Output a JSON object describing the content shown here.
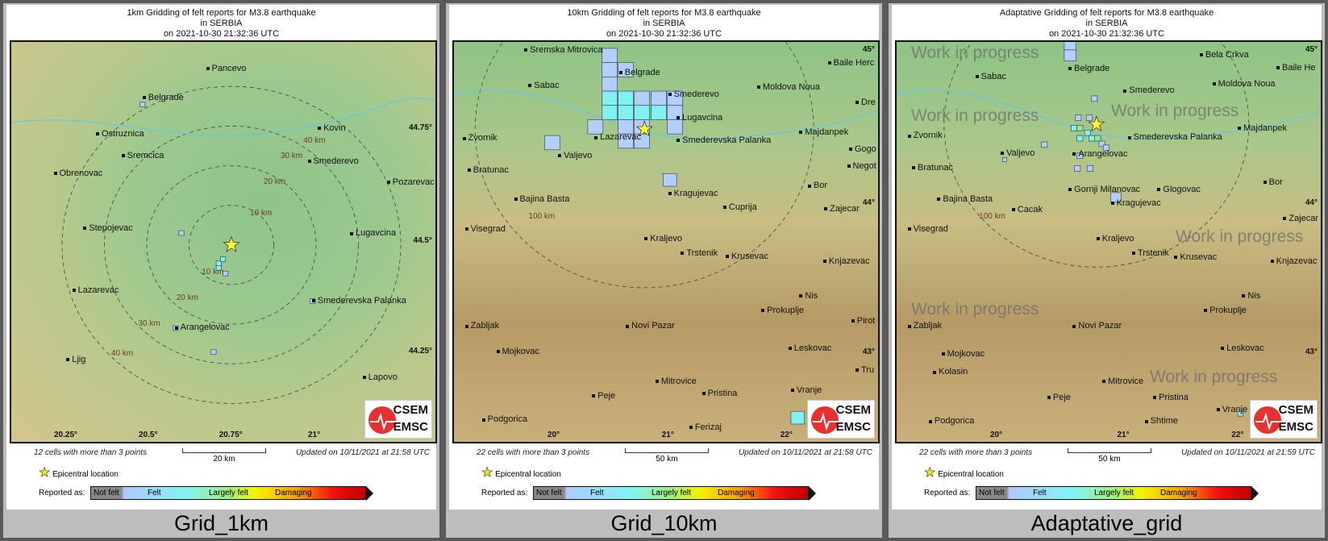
{
  "panels": [
    {
      "title": [
        "1km Gridding of felt reports for M3.8 earthquake",
        "in SERBIA",
        "on  2021-10-30 21:32:36 UTC"
      ],
      "cities": [
        "Pancevo",
        "Belgrade",
        "Ostruznica",
        "Kovin",
        "Sremcica",
        "Smederevo",
        "Obrenovac",
        "Pozarevac",
        "Stepojevac",
        "Lugavcina",
        "Lazarevac",
        "Smederevska Palanka",
        "Arangelovac",
        "Ljig",
        "Lapovo"
      ],
      "lon_ticks": [
        "20.25°",
        "20.5°",
        "20.75°",
        "21°"
      ],
      "lat_ticks": [
        "44.75°",
        "44.5°",
        "44.25°"
      ],
      "rings": [
        "10 km",
        "10 km",
        "20 km",
        "20 km",
        "30 km",
        "30 km",
        "40 km",
        "40 km"
      ],
      "cells_note": "12 cells with more than 3 points",
      "scale": "20 km",
      "updated": "Updated on 10/11/2021 at 21:58 UTC",
      "label": "Grid_1km"
    },
    {
      "title": [
        "10km Gridding of felt reports for M3.8 earthquake",
        "in SERBIA",
        "on  2021-10-30 21:32:36 UTC"
      ],
      "cities": [
        "Sremska Mitrovica",
        "Belgrade",
        "Sabac",
        "Smederevo",
        "Moldova Noua",
        "Lugavcina",
        "Majdanpek",
        "Zvornik",
        "Lazarevac",
        "Smederevska Palanka",
        "Valjevo",
        "Bratunac",
        "Kragujevac",
        "Cuprija",
        "Bor",
        "Zajecar",
        "Bajina Basta",
        "Visegrad",
        "Kraljevo",
        "Trstenik",
        "Krusevac",
        "Knjazevac",
        "Nis",
        "Prokuplje",
        "Zabljak",
        "Novi Pazar",
        "Mojkovac",
        "Leskovac",
        "Mitrovice",
        "Peje",
        "Pristina",
        "Podgorica",
        "Ferizaj",
        "Vranje",
        "Baile Herc",
        "Dre",
        "Gogo",
        "Negot",
        "Pirot",
        "Tru"
      ],
      "lon_ticks": [
        "20°",
        "21°",
        "22°"
      ],
      "lat_ticks": [
        "45°",
        "44°",
        "43°"
      ],
      "rings": [
        "100 km"
      ],
      "cells_note": "22 cells with more than 3 points",
      "scale": "50 km",
      "updated": "Updated on 10/11/2021 at 21:58 UTC",
      "label": "Grid_10km"
    },
    {
      "title": [
        "Adaptative Gridding of felt reports for M3.8 earthquake",
        "in SERBIA",
        "on  2021-10-30 21:32:36 UTC"
      ],
      "cities": [
        "Sabac",
        "Belgrade",
        "Bela Crkva",
        "Baile He",
        "Smederevo",
        "Moldova Noua",
        "Zvornik",
        "Smederevska Palanka",
        "Majdanpek",
        "Arangelovac",
        "Valjevo",
        "Bratunac",
        "Gornji Milanovac",
        "Kragujevac",
        "Glogovac",
        "Bor",
        "Bajina Basta",
        "Cacak",
        "Zajecar",
        "Visegrad",
        "Kraljevo",
        "Trstenik",
        "Krusevac",
        "Knjazevac",
        "Nis",
        "Prokuplje",
        "Zabljak",
        "Novi Pazar",
        "Mojkovac",
        "Kolasin",
        "Leskovac",
        "Mitrovice",
        "Peje",
        "Pristina",
        "Podgorica",
        "Shtime",
        "Vranje"
      ],
      "lon_ticks": [
        "20°",
        "21°",
        "22°"
      ],
      "lat_ticks": [
        "45°",
        "44°",
        "43°"
      ],
      "rings": [
        "100 km"
      ],
      "watermark": "Work in progress",
      "cells_note": "22 cells with more than 3 points",
      "scale": "50 km",
      "updated": "Updated on 10/11/2021 at 21:59 UTC",
      "label": "Adaptative_grid"
    }
  ],
  "legend": {
    "epicentral": "Epicentral location",
    "reported_as": "Reported as:",
    "levels": [
      "Not felt",
      "Felt",
      "Largely felt",
      "Damaging"
    ],
    "colors": [
      "#888888",
      "#b0c8ff",
      "#9ff07f",
      "#f8a000",
      "#c00000"
    ]
  },
  "logo": {
    "top": "CSEM",
    "bottom": "EMSC"
  },
  "colors": {
    "cell_felt": "#b3cfff",
    "cell_cyan": "#80f2f2",
    "cell_green": "#90ee90",
    "epicenter": "#ffff33"
  }
}
